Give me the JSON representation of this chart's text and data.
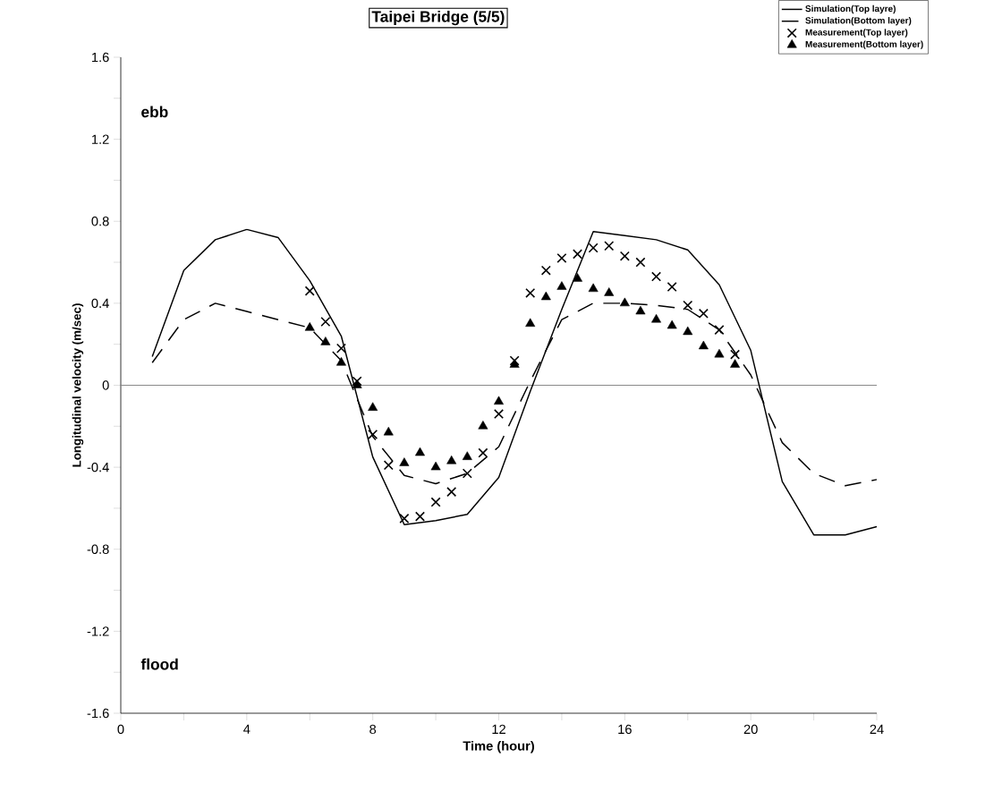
{
  "chart_data": {
    "type": "line",
    "title": "Taipei Bridge (5/5)",
    "xlabel": "Time (hour)",
    "ylabel": "Longitudinal velocity (m/sec)",
    "annotations": [
      "ebb",
      "flood"
    ],
    "xlim": [
      0,
      24
    ],
    "ylim": [
      -1.6,
      1.6
    ],
    "xticks": [
      0,
      {
        "value": 2,
        "label": null
      },
      4,
      {
        "value": 6,
        "label": null
      },
      8,
      {
        "value": 10,
        "label": null
      },
      12,
      {
        "value": 14,
        "label": null
      },
      16,
      {
        "value": 18,
        "label": null
      },
      20,
      {
        "value": 22,
        "label": null
      },
      24
    ],
    "yticks": [
      -1.6,
      {
        "value": -1.4,
        "label": null
      },
      -1.2,
      {
        "value": -1.0,
        "label": null
      },
      -0.8,
      {
        "value": -0.6,
        "label": null
      },
      -0.4,
      {
        "value": -0.2,
        "label": null
      },
      0,
      {
        "value": 0.2,
        "label": null
      },
      0.4,
      {
        "value": 0.6,
        "label": null
      },
      0.8,
      {
        "value": 1.0,
        "label": null
      },
      1.2,
      {
        "value": 1.4,
        "label": null
      },
      1.6
    ],
    "ref_lines": [
      {
        "axis": "y",
        "value": 0,
        "color": "#808080"
      }
    ],
    "grid": false,
    "legend": "top right",
    "series": [
      {
        "name": "Simulation(Top layre)",
        "color": "#000000",
        "marker": "none",
        "line_style": "solid",
        "x": [
          1,
          2,
          3,
          4,
          5,
          6,
          7,
          8,
          9,
          10,
          11,
          12,
          13,
          14,
          15,
          16,
          17,
          18,
          19,
          20,
          21,
          22,
          23,
          24
        ],
        "values": [
          0.14,
          0.56,
          0.71,
          0.76,
          0.72,
          0.51,
          0.24,
          -0.35,
          -0.68,
          -0.66,
          -0.63,
          -0.45,
          -0.03,
          0.37,
          0.75,
          0.73,
          0.71,
          0.66,
          0.49,
          0.17,
          -0.47,
          -0.73,
          -0.73,
          -0.69
        ]
      },
      {
        "name": "Simulation(Bottom layer)",
        "color": "#000000",
        "marker": "none",
        "line_style": "dashed",
        "x": [
          1,
          2,
          3,
          4,
          5,
          6,
          7,
          8,
          9,
          10,
          11,
          12,
          13,
          14,
          15,
          16,
          17,
          18,
          19,
          20,
          21,
          22,
          23,
          24
        ],
        "values": [
          0.11,
          0.32,
          0.4,
          0.36,
          0.32,
          0.28,
          0.12,
          -0.25,
          -0.44,
          -0.48,
          -0.43,
          -0.3,
          0.02,
          0.32,
          0.4,
          0.4,
          0.39,
          0.37,
          0.27,
          0.05,
          -0.28,
          -0.43,
          -0.49,
          -0.46
        ]
      },
      {
        "name": "Measurement(Top layer)",
        "type": "scatter",
        "color": "#000000",
        "marker": "cross",
        "x": [
          6,
          6.5,
          7,
          7.5,
          8,
          8.5,
          9,
          9.5,
          10,
          10.5,
          11,
          11.5,
          12,
          12.5,
          13,
          13.5,
          14,
          14.5,
          15,
          15.5,
          16,
          16.5,
          17,
          17.5,
          18,
          18.5,
          19,
          19.5
        ],
        "values": [
          0.46,
          0.31,
          0.18,
          0.02,
          -0.24,
          -0.39,
          -0.65,
          -0.64,
          -0.57,
          -0.52,
          -0.43,
          -0.33,
          -0.14,
          0.12,
          0.45,
          0.56,
          0.62,
          0.64,
          0.67,
          0.68,
          0.63,
          0.6,
          0.53,
          0.48,
          0.39,
          0.35,
          0.27,
          0.15
        ]
      },
      {
        "name": "Measurement(Bottom layer)",
        "type": "scatter",
        "color": "#000000",
        "marker": "triangle",
        "x": [
          6,
          6.5,
          7,
          7.5,
          8,
          8.5,
          9,
          9.5,
          10,
          10.5,
          11,
          11.5,
          12,
          12.5,
          13,
          13.5,
          14,
          14.5,
          15,
          15.5,
          16,
          16.5,
          17,
          17.5,
          18,
          18.5,
          19,
          19.5
        ],
        "values": [
          0.28,
          0.21,
          0.11,
          0.0,
          -0.11,
          -0.23,
          -0.38,
          -0.33,
          -0.4,
          -0.37,
          -0.35,
          -0.2,
          -0.08,
          0.1,
          0.3,
          0.43,
          0.48,
          0.52,
          0.47,
          0.45,
          0.4,
          0.36,
          0.32,
          0.29,
          0.26,
          0.19,
          0.15,
          0.1
        ]
      }
    ]
  }
}
